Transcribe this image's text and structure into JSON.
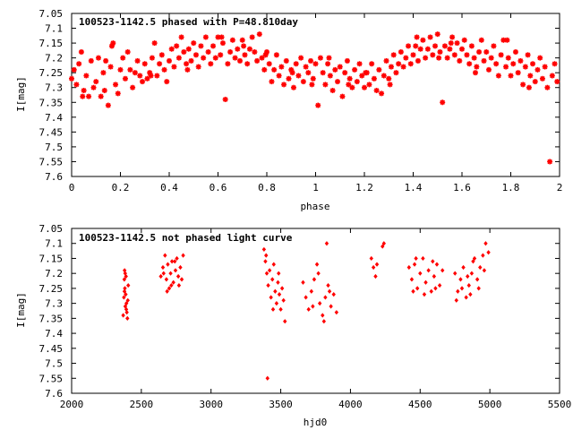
{
  "colors": {
    "points": "#ff0000",
    "axes": "#000000",
    "background": "#ffffff"
  },
  "chart_data": [
    {
      "type": "scatter",
      "title": "100523-1142.5 phased with P=48.810day",
      "xlabel": "phase",
      "ylabel": "I[mag]",
      "xlim": [
        0,
        2
      ],
      "ylim": [
        7.05,
        7.6
      ],
      "y_inverted": true,
      "grid": false,
      "marker": "asterisk",
      "x_ticks": [
        0,
        0.2,
        0.4,
        0.6,
        0.8,
        1,
        1.2,
        1.4,
        1.6,
        1.8,
        2
      ],
      "x_tick_labels": [
        "0",
        "0.2",
        "0.4",
        "0.6",
        "0.8",
        "1",
        "1.2",
        "1.4",
        "1.6",
        "1.8",
        "2"
      ],
      "y_ticks": [
        7.05,
        7.1,
        7.15,
        7.2,
        7.25,
        7.3,
        7.35,
        7.4,
        7.45,
        7.5,
        7.55,
        7.6
      ],
      "y_tick_labels": [
        "7.05",
        "7.1",
        "7.15",
        "7.2",
        "7.25",
        "7.3",
        "7.35",
        "7.4",
        "7.45",
        "7.5",
        "7.55",
        "7.6"
      ],
      "points": [
        [
          0.0,
          7.27
        ],
        [
          0.01,
          7.24
        ],
        [
          0.02,
          7.29
        ],
        [
          0.03,
          7.22
        ],
        [
          0.04,
          7.18
        ],
        [
          0.05,
          7.31
        ],
        [
          0.06,
          7.26
        ],
        [
          0.07,
          7.33
        ],
        [
          0.08,
          7.21
        ],
        [
          0.09,
          7.3
        ],
        [
          0.1,
          7.28
        ],
        [
          0.11,
          7.2
        ],
        [
          0.12,
          7.33
        ],
        [
          0.13,
          7.25
        ],
        [
          0.14,
          7.21
        ],
        [
          0.15,
          7.36
        ],
        [
          0.16,
          7.23
        ],
        [
          0.17,
          7.15
        ],
        [
          0.18,
          7.29
        ],
        [
          0.19,
          7.32
        ],
        [
          0.2,
          7.24
        ],
        [
          0.21,
          7.2
        ],
        [
          0.22,
          7.27
        ],
        [
          0.23,
          7.18
        ],
        [
          0.24,
          7.24
        ],
        [
          0.25,
          7.3
        ],
        [
          0.26,
          7.25
        ],
        [
          0.27,
          7.21
        ],
        [
          0.28,
          7.26
        ],
        [
          0.29,
          7.28
        ],
        [
          0.3,
          7.22
        ],
        [
          0.31,
          7.27
        ],
        [
          0.32,
          7.25
        ],
        [
          0.33,
          7.2
        ],
        [
          0.34,
          7.15
        ],
        [
          0.35,
          7.26
        ],
        [
          0.36,
          7.22
        ],
        [
          0.37,
          7.19
        ],
        [
          0.38,
          7.24
        ],
        [
          0.39,
          7.28
        ],
        [
          0.4,
          7.21
        ],
        [
          0.41,
          7.17
        ],
        [
          0.42,
          7.23
        ],
        [
          0.43,
          7.16
        ],
        [
          0.44,
          7.2
        ],
        [
          0.45,
          7.13
        ],
        [
          0.46,
          7.18
        ],
        [
          0.47,
          7.22
        ],
        [
          0.48,
          7.17
        ],
        [
          0.49,
          7.21
        ],
        [
          0.5,
          7.15
        ],
        [
          0.51,
          7.19
        ],
        [
          0.52,
          7.23
        ],
        [
          0.53,
          7.16
        ],
        [
          0.54,
          7.2
        ],
        [
          0.55,
          7.13
        ],
        [
          0.56,
          7.18
        ],
        [
          0.57,
          7.22
        ],
        [
          0.58,
          7.16
        ],
        [
          0.59,
          7.2
        ],
        [
          0.6,
          7.13
        ],
        [
          0.61,
          7.19
        ],
        [
          0.62,
          7.15
        ],
        [
          0.63,
          7.34
        ],
        [
          0.64,
          7.22
        ],
        [
          0.65,
          7.18
        ],
        [
          0.66,
          7.14
        ],
        [
          0.67,
          7.2
        ],
        [
          0.68,
          7.17
        ],
        [
          0.69,
          7.21
        ],
        [
          0.7,
          7.14
        ],
        [
          0.71,
          7.19
        ],
        [
          0.72,
          7.22
        ],
        [
          0.73,
          7.17
        ],
        [
          0.74,
          7.13
        ],
        [
          0.75,
          7.18
        ],
        [
          0.76,
          7.21
        ],
        [
          0.77,
          7.12
        ],
        [
          0.78,
          7.2
        ],
        [
          0.79,
          7.24
        ],
        [
          0.8,
          7.18
        ],
        [
          0.81,
          7.22
        ],
        [
          0.82,
          7.28
        ],
        [
          0.83,
          7.24
        ],
        [
          0.84,
          7.19
        ],
        [
          0.85,
          7.26
        ],
        [
          0.86,
          7.23
        ],
        [
          0.87,
          7.29
        ],
        [
          0.88,
          7.21
        ],
        [
          0.89,
          7.27
        ],
        [
          0.9,
          7.24
        ],
        [
          0.91,
          7.3
        ],
        [
          0.92,
          7.22
        ],
        [
          0.93,
          7.26
        ],
        [
          0.94,
          7.2
        ],
        [
          0.95,
          7.28
        ],
        [
          0.96,
          7.23
        ],
        [
          0.97,
          7.25
        ],
        [
          0.98,
          7.21
        ],
        [
          0.99,
          7.27
        ],
        [
          1.0,
          7.22
        ],
        [
          1.01,
          7.36
        ],
        [
          1.02,
          7.2
        ],
        [
          1.03,
          7.25
        ],
        [
          1.04,
          7.29
        ],
        [
          1.05,
          7.22
        ],
        [
          1.06,
          7.26
        ],
        [
          1.07,
          7.31
        ],
        [
          1.08,
          7.24
        ],
        [
          1.09,
          7.28
        ],
        [
          1.1,
          7.23
        ],
        [
          1.11,
          7.33
        ],
        [
          1.12,
          7.25
        ],
        [
          1.13,
          7.21
        ],
        [
          1.14,
          7.27
        ],
        [
          1.15,
          7.3
        ],
        [
          1.16,
          7.24
        ],
        [
          1.17,
          7.28
        ],
        [
          1.18,
          7.22
        ],
        [
          1.19,
          7.26
        ],
        [
          1.2,
          7.3
        ],
        [
          1.21,
          7.25
        ],
        [
          1.22,
          7.29
        ],
        [
          1.23,
          7.22
        ],
        [
          1.24,
          7.27
        ],
        [
          1.25,
          7.31
        ],
        [
          1.26,
          7.24
        ],
        [
          1.27,
          7.32
        ],
        [
          1.28,
          7.26
        ],
        [
          1.29,
          7.21
        ],
        [
          1.3,
          7.27
        ],
        [
          1.31,
          7.23
        ],
        [
          1.32,
          7.19
        ],
        [
          1.33,
          7.25
        ],
        [
          1.34,
          7.22
        ],
        [
          1.35,
          7.18
        ],
        [
          1.36,
          7.23
        ],
        [
          1.37,
          7.2
        ],
        [
          1.38,
          7.16
        ],
        [
          1.39,
          7.22
        ],
        [
          1.4,
          7.19
        ],
        [
          1.41,
          7.16
        ],
        [
          1.42,
          7.21
        ],
        [
          1.43,
          7.17
        ],
        [
          1.44,
          7.14
        ],
        [
          1.45,
          7.2
        ],
        [
          1.46,
          7.17
        ],
        [
          1.47,
          7.13
        ],
        [
          1.48,
          7.19
        ],
        [
          1.49,
          7.16
        ],
        [
          1.5,
          7.12
        ],
        [
          1.51,
          7.18
        ],
        [
          1.52,
          7.35
        ],
        [
          1.53,
          7.16
        ],
        [
          1.54,
          7.2
        ],
        [
          1.55,
          7.17
        ],
        [
          1.56,
          7.13
        ],
        [
          1.57,
          7.19
        ],
        [
          1.58,
          7.15
        ],
        [
          1.59,
          7.21
        ],
        [
          1.6,
          7.17
        ],
        [
          1.61,
          7.14
        ],
        [
          1.62,
          7.19
        ],
        [
          1.63,
          7.22
        ],
        [
          1.64,
          7.16
        ],
        [
          1.65,
          7.2
        ],
        [
          1.66,
          7.23
        ],
        [
          1.67,
          7.18
        ],
        [
          1.68,
          7.14
        ],
        [
          1.69,
          7.21
        ],
        [
          1.7,
          7.18
        ],
        [
          1.71,
          7.24
        ],
        [
          1.72,
          7.2
        ],
        [
          1.73,
          7.16
        ],
        [
          1.74,
          7.22
        ],
        [
          1.75,
          7.26
        ],
        [
          1.76,
          7.19
        ],
        [
          1.77,
          7.14
        ],
        [
          1.78,
          7.23
        ],
        [
          1.79,
          7.2
        ],
        [
          1.8,
          7.26
        ],
        [
          1.81,
          7.22
        ],
        [
          1.82,
          7.18
        ],
        [
          1.83,
          7.25
        ],
        [
          1.84,
          7.21
        ],
        [
          1.85,
          7.29
        ],
        [
          1.86,
          7.23
        ],
        [
          1.87,
          7.19
        ],
        [
          1.88,
          7.26
        ],
        [
          1.89,
          7.22
        ],
        [
          1.9,
          7.28
        ],
        [
          1.91,
          7.24
        ],
        [
          1.92,
          7.2
        ],
        [
          1.93,
          7.27
        ],
        [
          1.94,
          7.23
        ],
        [
          1.95,
          7.3
        ],
        [
          1.96,
          7.55
        ],
        [
          1.97,
          7.26
        ],
        [
          1.98,
          7.22
        ],
        [
          1.99,
          7.28
        ],
        [
          0.045,
          7.33
        ],
        [
          0.135,
          7.31
        ],
        [
          0.165,
          7.16
        ],
        [
          0.325,
          7.26
        ],
        [
          0.475,
          7.24
        ],
        [
          0.615,
          7.13
        ],
        [
          0.705,
          7.16
        ],
        [
          0.795,
          7.19
        ],
        [
          0.905,
          7.25
        ],
        [
          0.985,
          7.29
        ],
        [
          1.055,
          7.2
        ],
        [
          1.135,
          7.29
        ],
        [
          1.205,
          7.25
        ],
        [
          1.305,
          7.29
        ],
        [
          1.415,
          7.13
        ],
        [
          1.505,
          7.2
        ],
        [
          1.555,
          7.15
        ],
        [
          1.655,
          7.25
        ],
        [
          1.785,
          7.14
        ],
        [
          1.875,
          7.3
        ]
      ]
    },
    {
      "type": "scatter",
      "title": "100523-1142.5 not phased light curve",
      "xlabel": "hjd0",
      "ylabel": "I[mag]",
      "xlim": [
        2000,
        5500
      ],
      "ylim": [
        7.05,
        7.6
      ],
      "y_inverted": true,
      "grid": false,
      "marker": "diamond",
      "x_ticks": [
        2000,
        2500,
        3000,
        3500,
        4000,
        4500,
        5000,
        5500
      ],
      "x_tick_labels": [
        "2000",
        "2500",
        "3000",
        "3500",
        "4000",
        "4500",
        "5000",
        "5500"
      ],
      "y_ticks": [
        7.05,
        7.1,
        7.15,
        7.2,
        7.25,
        7.3,
        7.35,
        7.4,
        7.45,
        7.5,
        7.55,
        7.6
      ],
      "y_tick_labels": [
        "7.05",
        "7.1",
        "7.15",
        "7.2",
        "7.25",
        "7.3",
        "7.35",
        "7.4",
        "7.45",
        "7.5",
        "7.55",
        "7.6"
      ],
      "points": [
        [
          2370,
          7.34
        ],
        [
          2375,
          7.28
        ],
        [
          2378,
          7.22
        ],
        [
          2380,
          7.19
        ],
        [
          2382,
          7.25
        ],
        [
          2385,
          7.31
        ],
        [
          2388,
          7.27
        ],
        [
          2390,
          7.21
        ],
        [
          2393,
          7.3
        ],
        [
          2396,
          7.33
        ],
        [
          2400,
          7.35
        ],
        [
          2403,
          7.29
        ],
        [
          2406,
          7.24
        ],
        [
          2379,
          7.26
        ],
        [
          2384,
          7.2
        ],
        [
          2392,
          7.32
        ],
        [
          2640,
          7.21
        ],
        [
          2655,
          7.18
        ],
        [
          2670,
          7.14
        ],
        [
          2680,
          7.22
        ],
        [
          2690,
          7.17
        ],
        [
          2700,
          7.25
        ],
        [
          2710,
          7.2
        ],
        [
          2720,
          7.16
        ],
        [
          2730,
          7.23
        ],
        [
          2745,
          7.19
        ],
        [
          2755,
          7.15
        ],
        [
          2765,
          7.21
        ],
        [
          2780,
          7.18
        ],
        [
          2790,
          7.22
        ],
        [
          2800,
          7.14
        ],
        [
          2685,
          7.26
        ],
        [
          2715,
          7.24
        ],
        [
          2740,
          7.16
        ],
        [
          2660,
          7.2
        ],
        [
          2770,
          7.24
        ],
        [
          3380,
          7.12
        ],
        [
          3390,
          7.16
        ],
        [
          3400,
          7.2
        ],
        [
          3410,
          7.24
        ],
        [
          3420,
          7.19
        ],
        [
          3430,
          7.28
        ],
        [
          3440,
          7.22
        ],
        [
          3450,
          7.17
        ],
        [
          3460,
          7.26
        ],
        [
          3470,
          7.3
        ],
        [
          3480,
          7.23
        ],
        [
          3490,
          7.27
        ],
        [
          3500,
          7.32
        ],
        [
          3510,
          7.25
        ],
        [
          3520,
          7.29
        ],
        [
          3530,
          7.36
        ],
        [
          3395,
          7.14
        ],
        [
          3445,
          7.32
        ],
        [
          3485,
          7.2
        ],
        [
          3405,
          7.55
        ],
        [
          3660,
          7.23
        ],
        [
          3680,
          7.28
        ],
        [
          3700,
          7.32
        ],
        [
          3720,
          7.26
        ],
        [
          3740,
          7.22
        ],
        [
          3760,
          7.17
        ],
        [
          3780,
          7.3
        ],
        [
          3800,
          7.34
        ],
        [
          3820,
          7.28
        ],
        [
          3840,
          7.24
        ],
        [
          3860,
          7.31
        ],
        [
          3880,
          7.27
        ],
        [
          3900,
          7.33
        ],
        [
          3830,
          7.1
        ],
        [
          3770,
          7.2
        ],
        [
          3810,
          7.36
        ],
        [
          3730,
          7.31
        ],
        [
          3850,
          7.26
        ],
        [
          4150,
          7.15
        ],
        [
          4165,
          7.18
        ],
        [
          4180,
          7.21
        ],
        [
          4190,
          7.17
        ],
        [
          4230,
          7.11
        ],
        [
          4240,
          7.1
        ],
        [
          4420,
          7.18
        ],
        [
          4440,
          7.22
        ],
        [
          4460,
          7.17
        ],
        [
          4480,
          7.25
        ],
        [
          4500,
          7.2
        ],
        [
          4520,
          7.15
        ],
        [
          4540,
          7.23
        ],
        [
          4560,
          7.19
        ],
        [
          4580,
          7.26
        ],
        [
          4600,
          7.21
        ],
        [
          4620,
          7.17
        ],
        [
          4640,
          7.24
        ],
        [
          4660,
          7.19
        ],
        [
          4470,
          7.15
        ],
        [
          4530,
          7.27
        ],
        [
          4590,
          7.16
        ],
        [
          4610,
          7.25
        ],
        [
          4450,
          7.26
        ],
        [
          4750,
          7.2
        ],
        [
          4770,
          7.26
        ],
        [
          4790,
          7.22
        ],
        [
          4810,
          7.18
        ],
        [
          4830,
          7.28
        ],
        [
          4850,
          7.24
        ],
        [
          4870,
          7.2
        ],
        [
          4890,
          7.15
        ],
        [
          4910,
          7.22
        ],
        [
          4930,
          7.18
        ],
        [
          4950,
          7.14
        ],
        [
          4970,
          7.1
        ],
        [
          4990,
          7.13
        ],
        [
          4860,
          7.27
        ],
        [
          4920,
          7.25
        ],
        [
          4760,
          7.29
        ],
        [
          4880,
          7.16
        ],
        [
          4960,
          7.19
        ],
        [
          4800,
          7.25
        ],
        [
          4840,
          7.21
        ]
      ]
    }
  ]
}
